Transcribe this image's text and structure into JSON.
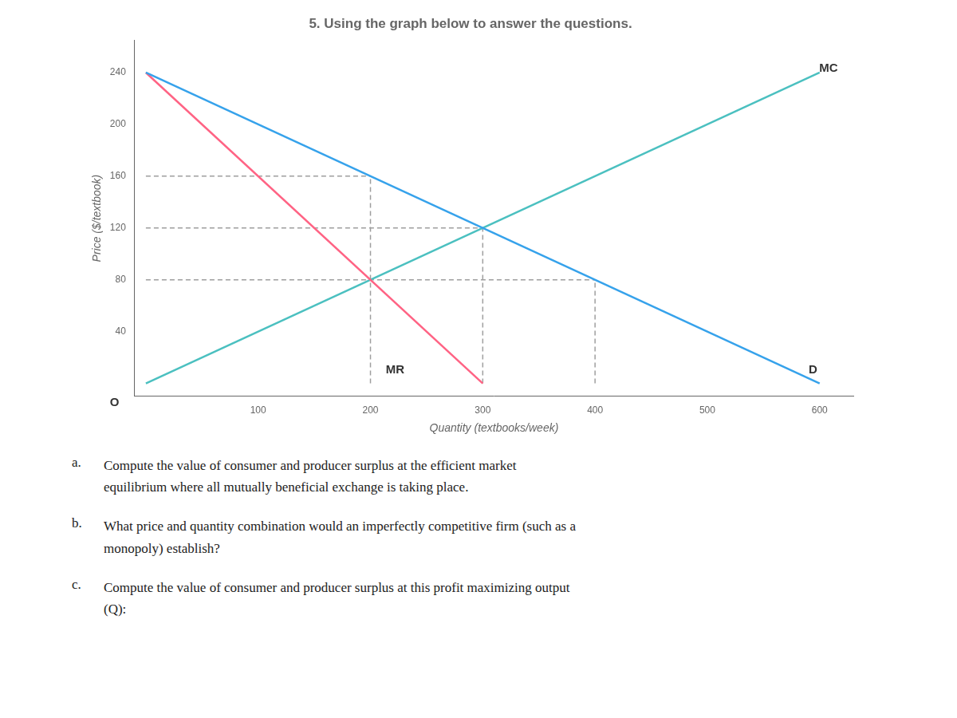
{
  "chart_data": {
    "type": "line",
    "title": "5. Using the graph below to answer the questions.",
    "xlabel": "Quantity (textbooks/week)",
    "ylabel": "Price ($/textbook)",
    "xlim": [
      -10,
      630
    ],
    "ylim": [
      -10,
      265
    ],
    "xticks": [
      100,
      200,
      300,
      400,
      500,
      600
    ],
    "yticks": [
      40,
      80,
      120,
      160,
      200,
      240
    ],
    "grid": false,
    "series": [
      {
        "color": "#36a2eb",
        "x": [
          0,
          600
        ],
        "values": [
          240,
          0
        ],
        "line_style": "solid"
      },
      {
        "color": "#ff6384",
        "x": [
          0,
          300
        ],
        "values": [
          240,
          0
        ],
        "line_style": "solid"
      },
      {
        "color": "#4bc0c0",
        "x": [
          0,
          600
        ],
        "values": [
          0,
          240
        ],
        "line_style": "solid"
      },
      {
        "color": "#9e9e9e",
        "x": [
          0,
          200
        ],
        "values": [
          160,
          160
        ],
        "line_style": "dashed"
      },
      {
        "color": "#9e9e9e",
        "x": [
          200,
          200
        ],
        "values": [
          0,
          160
        ],
        "line_style": "dashed"
      },
      {
        "color": "#9e9e9e",
        "x": [
          0,
          300
        ],
        "values": [
          120,
          120
        ],
        "line_style": "dashed"
      },
      {
        "color": "#9e9e9e",
        "x": [
          300,
          300
        ],
        "values": [
          0,
          120
        ],
        "line_style": "dashed"
      },
      {
        "color": "#9e9e9e",
        "x": [
          0,
          400
        ],
        "values": [
          80,
          80
        ],
        "line_style": "dashed"
      },
      {
        "color": "#9e9e9e",
        "x": [
          400,
          400
        ],
        "values": [
          0,
          80
        ],
        "line_style": "dashed"
      }
    ],
    "annotations": [
      {
        "text": "MC",
        "x": 608,
        "y": 243
      },
      {
        "text": "MR",
        "x": 222,
        "y": 10
      },
      {
        "text": "D",
        "x": 594,
        "y": 10
      },
      {
        "text": "O",
        "x": -28,
        "y": -15
      }
    ],
    "questions": [
      {
        "label": "a.",
        "lines": [
          "Compute the value of consumer and producer surplus at the efficient market",
          "equilibrium where all mutually beneficial exchange is taking place."
        ]
      },
      {
        "label": "b.",
        "lines": [
          "What price and quantity combination would an imperfectly competitive firm (such as a",
          "monopoly) establish?"
        ]
      },
      {
        "label": "c.",
        "lines": [
          "Compute the value of consumer and producer surplus at this profit maximizing output",
          "(Q):"
        ]
      }
    ]
  }
}
